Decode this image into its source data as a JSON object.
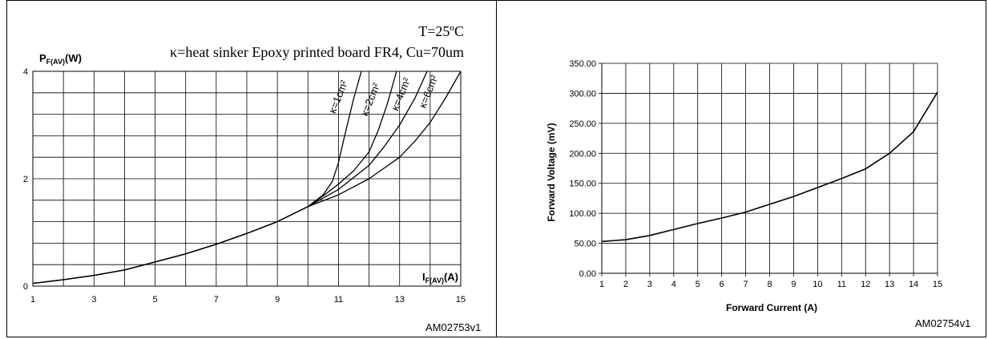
{
  "chart_data": [
    {
      "type": "line",
      "title": "T=25ºC",
      "subtitle": "κ=heat sinker Epoxy printed board FR4, Cu=70um",
      "ylabel_main": "P",
      "ylabel_sub": "F(AV)",
      "ylabel_unit": "(W)",
      "xlabel_main": "I",
      "xlabel_sub": "F(AV)",
      "xlabel_unit": "(A)",
      "xlim": [
        1,
        15
      ],
      "ylim": [
        0,
        4
      ],
      "xticks": [
        "1",
        "3",
        "5",
        "7",
        "9",
        "11",
        "13",
        "15"
      ],
      "yticks": [
        "0",
        "2",
        "4"
      ],
      "grid": true,
      "series": [
        {
          "name": "κ=1cm²",
          "x": [
            1,
            2,
            3,
            4,
            5,
            6,
            7,
            8,
            9,
            10,
            10.5,
            10.8,
            11.0,
            11.2,
            11.5,
            11.75
          ],
          "y": [
            0.05,
            0.12,
            0.2,
            0.3,
            0.45,
            0.6,
            0.78,
            0.98,
            1.2,
            1.48,
            1.7,
            1.95,
            2.3,
            2.8,
            3.5,
            4.0
          ]
        },
        {
          "name": "κ=2cm²",
          "x": [
            1,
            2,
            3,
            4,
            5,
            6,
            7,
            8,
            9,
            10,
            10.5,
            11,
            11.5,
            12,
            12.3,
            12.6,
            12.9
          ],
          "y": [
            0.05,
            0.12,
            0.2,
            0.3,
            0.45,
            0.6,
            0.78,
            0.98,
            1.2,
            1.48,
            1.68,
            1.9,
            2.15,
            2.5,
            2.9,
            3.4,
            4.0
          ]
        },
        {
          "name": "κ=4cm²",
          "x": [
            1,
            2,
            3,
            4,
            5,
            6,
            7,
            8,
            9,
            10,
            11,
            12,
            12.5,
            13,
            13.5,
            13.9
          ],
          "y": [
            0.05,
            0.12,
            0.2,
            0.3,
            0.45,
            0.6,
            0.78,
            0.98,
            1.2,
            1.48,
            1.8,
            2.25,
            2.6,
            3.0,
            3.5,
            4.0
          ]
        },
        {
          "name": "κ=6cm²",
          "x": [
            1,
            2,
            3,
            4,
            5,
            6,
            7,
            8,
            9,
            10,
            11,
            12,
            13,
            13.5,
            14,
            14.5,
            15
          ],
          "y": [
            0.05,
            0.12,
            0.2,
            0.3,
            0.45,
            0.6,
            0.78,
            0.98,
            1.2,
            1.48,
            1.7,
            2.0,
            2.4,
            2.7,
            3.05,
            3.5,
            4.0
          ]
        }
      ],
      "reference": "AM02753v1"
    },
    {
      "type": "line",
      "xlabel": "Forward Current (A)",
      "ylabel": "Forward Voltage (mV)",
      "xlim": [
        1,
        15
      ],
      "ylim": [
        0,
        350
      ],
      "xticks": [
        "1",
        "2",
        "3",
        "4",
        "5",
        "6",
        "7",
        "8",
        "9",
        "10",
        "11",
        "12",
        "13",
        "14",
        "15"
      ],
      "yticks": [
        "0.00",
        "50.00",
        "100.00",
        "150.00",
        "200.00",
        "250.00",
        "300.00",
        "350.00"
      ],
      "grid": true,
      "series": [
        {
          "x": [
            1,
            2,
            3,
            4,
            5,
            6,
            7,
            8,
            9,
            10,
            11,
            12,
            13,
            14,
            15
          ],
          "y": [
            53,
            56,
            63,
            73,
            83,
            92,
            102,
            115,
            128,
            143,
            158,
            174,
            200,
            236,
            302
          ]
        }
      ],
      "reference": "AM02754v1"
    }
  ]
}
